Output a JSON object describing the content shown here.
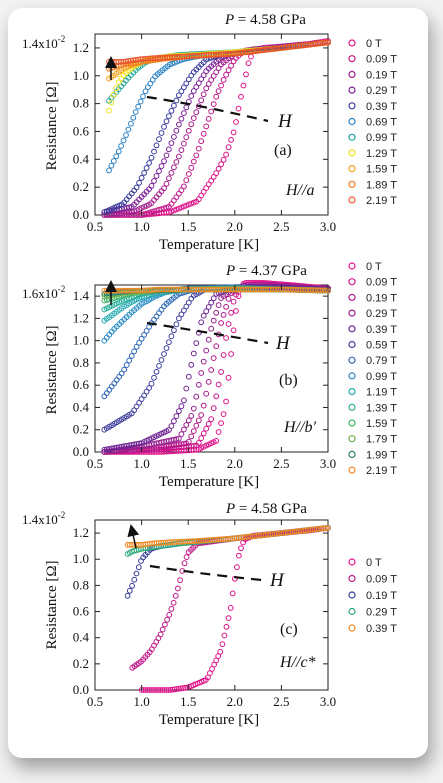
{
  "figure": {
    "x_label": "Temperature [K]",
    "y_label": "Resistance [Ω]",
    "H_symbol": "H"
  },
  "chart_data": [
    {
      "type": "scatter",
      "panel": "(a)",
      "title": "P = 4.58 GPa",
      "title_P": "P",
      "title_value": " = 4.58 GPa",
      "field_direction": "H//a",
      "xlim": [
        0.5,
        3.0
      ],
      "ylim": [
        0.0,
        1.3
      ],
      "x_ticks": [
        "0.5",
        "1.0",
        "1.5",
        "2.0",
        "2.5",
        "3.0"
      ],
      "y_ticks": [
        "0.0",
        "0.2",
        "0.4",
        "0.6",
        "0.8",
        "1.0",
        "1.2"
      ],
      "y_top_label": "1.4x10",
      "y_top_exp": "-2",
      "series": [
        {
          "name": "0 T",
          "color": "#e0138c",
          "x": [
            0.6,
            1.0,
            1.3,
            1.6,
            1.7,
            1.8,
            1.9,
            2.0,
            2.05,
            2.1,
            2.15,
            2.2,
            2.3,
            2.5,
            2.8,
            3.0
          ],
          "y": [
            0.0,
            0.0,
            0.02,
            0.1,
            0.2,
            0.3,
            0.42,
            0.62,
            0.8,
            0.95,
            1.1,
            1.18,
            1.2,
            1.21,
            1.23,
            1.25
          ]
        },
        {
          "name": "0.09 T",
          "color": "#c2188a",
          "x": [
            0.6,
            1.0,
            1.3,
            1.45,
            1.6,
            1.7,
            1.8,
            1.9,
            2.0,
            2.1,
            2.2,
            2.5,
            3.0
          ],
          "y": [
            0.0,
            0.0,
            0.06,
            0.2,
            0.45,
            0.65,
            0.85,
            1.0,
            1.12,
            1.18,
            1.19,
            1.21,
            1.24
          ]
        },
        {
          "name": "0.19 T",
          "color": "#a41e8e",
          "x": [
            0.6,
            0.9,
            1.1,
            1.25,
            1.4,
            1.55,
            1.7,
            1.85,
            2.0,
            2.2,
            2.5,
            3.0
          ],
          "y": [
            0.0,
            0.02,
            0.08,
            0.2,
            0.42,
            0.68,
            0.92,
            1.08,
            1.16,
            1.19,
            1.21,
            1.24
          ]
        },
        {
          "name": "0.29 T",
          "color": "#7b2296",
          "x": [
            0.6,
            0.9,
            1.1,
            1.25,
            1.4,
            1.55,
            1.7,
            1.85,
            2.0,
            2.5,
            3.0
          ],
          "y": [
            0.02,
            0.06,
            0.2,
            0.4,
            0.65,
            0.88,
            1.04,
            1.13,
            1.17,
            1.2,
            1.24
          ]
        },
        {
          "name": "0.39 T",
          "color": "#3a3d9b",
          "x": [
            0.6,
            0.8,
            0.95,
            1.1,
            1.25,
            1.4,
            1.55,
            1.7,
            1.9,
            2.2,
            2.6,
            3.0
          ],
          "y": [
            0.02,
            0.08,
            0.2,
            0.4,
            0.65,
            0.86,
            1.02,
            1.12,
            1.16,
            1.18,
            1.21,
            1.24
          ]
        },
        {
          "name": "0.69 T",
          "color": "#2a82c4",
          "x": [
            0.65,
            0.75,
            0.85,
            0.95,
            1.05,
            1.15,
            1.3,
            1.45,
            1.6,
            2.0,
            2.5,
            3.0
          ],
          "y": [
            0.32,
            0.45,
            0.6,
            0.76,
            0.9,
            1.0,
            1.08,
            1.12,
            1.14,
            1.17,
            1.2,
            1.24
          ]
        },
        {
          "name": "0.99 T",
          "color": "#22a79b",
          "x": [
            0.65,
            0.75,
            0.85,
            0.95,
            1.05,
            1.2,
            1.4,
            1.7,
            2.0,
            2.5,
            3.0
          ],
          "y": [
            0.82,
            0.9,
            0.98,
            1.05,
            1.1,
            1.13,
            1.15,
            1.16,
            1.17,
            1.2,
            1.24
          ]
        },
        {
          "name": "1.29 T",
          "color": "#f3e31a",
          "x": [
            0.65,
            0.7,
            0.75,
            0.8,
            0.9,
            1.0,
            1.1,
            1.3,
            1.6,
            2.0,
            2.5,
            3.0
          ],
          "y": [
            0.75,
            0.86,
            0.95,
            1.0,
            1.06,
            1.1,
            1.12,
            1.14,
            1.15,
            1.17,
            1.2,
            1.24
          ]
        },
        {
          "name": "1.59 T",
          "color": "#f4a21e",
          "x": [
            0.65,
            0.7,
            0.8,
            0.9,
            1.0,
            1.2,
            1.5,
            2.0,
            2.5,
            3.0
          ],
          "y": [
            0.98,
            1.0,
            1.05,
            1.08,
            1.1,
            1.12,
            1.14,
            1.16,
            1.2,
            1.24
          ]
        },
        {
          "name": "1.89 T",
          "color": "#f07b22",
          "x": [
            0.65,
            0.7,
            0.8,
            0.9,
            1.0,
            1.2,
            1.5,
            2.0,
            2.5,
            3.0
          ],
          "y": [
            1.05,
            1.06,
            1.08,
            1.09,
            1.1,
            1.12,
            1.14,
            1.16,
            1.2,
            1.24
          ]
        },
        {
          "name": "2.19 T",
          "color": "#e8532a",
          "x": [
            0.65,
            0.7,
            0.8,
            0.9,
            1.0,
            1.2,
            1.5,
            2.0,
            2.5,
            3.0
          ],
          "y": [
            1.1,
            1.1,
            1.1,
            1.11,
            1.12,
            1.13,
            1.14,
            1.16,
            1.2,
            1.24
          ]
        }
      ]
    },
    {
      "type": "scatter",
      "panel": "(b)",
      "title": "P = 4.37 GPa",
      "title_P": "P",
      "title_value": " = 4.37 GPa",
      "field_direction": "H//b′",
      "xlim": [
        0.5,
        3.0
      ],
      "ylim": [
        0.0,
        1.5
      ],
      "x_ticks": [
        "0.5",
        "1.0",
        "1.5",
        "2.0",
        "2.5",
        "3.0"
      ],
      "y_ticks": [
        "0.0",
        "0.2",
        "0.4",
        "0.6",
        "0.8",
        "1.0",
        "1.2",
        "1.4"
      ],
      "y_top_label": "1.6x10",
      "y_top_exp": "-2",
      "series": [
        {
          "name": "0 T",
          "color": "#e0138c",
          "x": [
            0.6,
            1.2,
            1.6,
            1.8,
            1.9,
            1.95,
            2.0,
            2.05,
            2.1,
            2.3,
            2.6,
            3.0
          ],
          "y": [
            0.0,
            0.0,
            0.02,
            0.1,
            0.4,
            0.8,
            1.2,
            1.45,
            1.52,
            1.52,
            1.5,
            1.47
          ]
        },
        {
          "name": "0.09 T",
          "color": "#d0168b",
          "x": [
            0.6,
            1.2,
            1.6,
            1.75,
            1.85,
            1.92,
            2.0,
            2.1,
            2.3,
            2.6,
            3.0
          ],
          "y": [
            0.0,
            0.02,
            0.06,
            0.3,
            0.7,
            1.1,
            1.4,
            1.5,
            1.51,
            1.49,
            1.47
          ]
        },
        {
          "name": "0.19 T",
          "color": "#b41a8c",
          "x": [
            0.6,
            1.1,
            1.5,
            1.65,
            1.75,
            1.85,
            1.95,
            2.1,
            2.4,
            3.0
          ],
          "y": [
            0.0,
            0.03,
            0.08,
            0.35,
            0.75,
            1.15,
            1.42,
            1.5,
            1.5,
            1.47
          ]
        },
        {
          "name": "0.29 T",
          "color": "#98208e",
          "x": [
            0.6,
            1.0,
            1.4,
            1.55,
            1.65,
            1.75,
            1.85,
            2.0,
            2.4,
            3.0
          ],
          "y": [
            0.0,
            0.05,
            0.12,
            0.35,
            0.75,
            1.12,
            1.38,
            1.48,
            1.49,
            1.46
          ]
        },
        {
          "name": "0.39 T",
          "color": "#6d2593",
          "x": [
            0.6,
            1.0,
            1.3,
            1.45,
            1.55,
            1.65,
            1.8,
            2.0,
            2.5,
            3.0
          ],
          "y": [
            0.02,
            0.08,
            0.2,
            0.45,
            0.85,
            1.2,
            1.42,
            1.48,
            1.48,
            1.46
          ]
        },
        {
          "name": "0.59 T",
          "color": "#3e3f9c",
          "x": [
            0.6,
            0.9,
            1.1,
            1.25,
            1.4,
            1.55,
            1.7,
            1.9,
            2.3,
            3.0
          ],
          "y": [
            0.2,
            0.35,
            0.6,
            0.9,
            1.2,
            1.4,
            1.47,
            1.48,
            1.47,
            1.45
          ]
        },
        {
          "name": "0.79 T",
          "color": "#2e67b6",
          "x": [
            0.6,
            0.8,
            0.95,
            1.1,
            1.25,
            1.4,
            1.6,
            2.0,
            2.5,
            3.0
          ],
          "y": [
            0.5,
            0.72,
            0.95,
            1.15,
            1.32,
            1.42,
            1.47,
            1.48,
            1.46,
            1.45
          ]
        },
        {
          "name": "0.99 T",
          "color": "#2a8cc6",
          "x": [
            0.6,
            0.7,
            0.8,
            0.9,
            1.0,
            1.15,
            1.3,
            1.5,
            2.0,
            2.5,
            3.0
          ],
          "y": [
            1.0,
            1.1,
            1.18,
            1.26,
            1.33,
            1.4,
            1.45,
            1.47,
            1.47,
            1.46,
            1.45
          ]
        },
        {
          "name": "1.19 T",
          "color": "#27a9b2",
          "x": [
            0.6,
            0.7,
            0.8,
            0.9,
            1.0,
            1.2,
            1.5,
            2.0,
            2.5,
            3.0
          ],
          "y": [
            1.18,
            1.24,
            1.3,
            1.35,
            1.39,
            1.43,
            1.46,
            1.47,
            1.46,
            1.45
          ]
        },
        {
          "name": "1.39 T",
          "color": "#2bb09a",
          "x": [
            0.6,
            0.7,
            0.8,
            0.9,
            1.0,
            1.2,
            1.5,
            2.0,
            2.5,
            3.0
          ],
          "y": [
            1.28,
            1.32,
            1.36,
            1.39,
            1.42,
            1.45,
            1.46,
            1.47,
            1.46,
            1.45
          ]
        },
        {
          "name": "1.59 T",
          "color": "#41b36e",
          "x": [
            0.6,
            0.7,
            0.8,
            1.0,
            1.2,
            1.5,
            2.0,
            2.5,
            3.0
          ],
          "y": [
            1.36,
            1.38,
            1.41,
            1.44,
            1.45,
            1.46,
            1.47,
            1.46,
            1.45
          ]
        },
        {
          "name": "1.79 T",
          "color": "#6fb44a",
          "x": [
            0.6,
            0.7,
            0.8,
            1.0,
            1.2,
            1.5,
            2.0,
            2.5,
            3.0
          ],
          "y": [
            1.4,
            1.41,
            1.43,
            1.44,
            1.45,
            1.46,
            1.46,
            1.46,
            1.45
          ]
        },
        {
          "name": "1.99 T",
          "color": "#2c7f73",
          "x": [
            0.6,
            0.7,
            0.8,
            1.0,
            1.2,
            1.5,
            2.0,
            2.5,
            3.0
          ],
          "y": [
            1.42,
            1.43,
            1.44,
            1.45,
            1.45,
            1.46,
            1.46,
            1.46,
            1.45
          ]
        },
        {
          "name": "2.19 T",
          "color": "#f08a24",
          "x": [
            0.6,
            0.7,
            0.8,
            1.0,
            1.2,
            1.5,
            2.0,
            2.5,
            3.0
          ],
          "y": [
            1.45,
            1.45,
            1.45,
            1.45,
            1.46,
            1.46,
            1.46,
            1.46,
            1.45
          ]
        }
      ]
    },
    {
      "type": "scatter",
      "panel": "(c)",
      "title": "P = 4.58 GPa",
      "title_P": "P",
      "title_value": " = 4.58 GPa",
      "field_direction": "H//c*",
      "xlim": [
        0.5,
        3.0
      ],
      "ylim": [
        0.0,
        1.3
      ],
      "x_ticks": [
        "0.5",
        "1.0",
        "1.5",
        "2.0",
        "2.5",
        "3.0"
      ],
      "y_ticks": [
        "0.0",
        "0.2",
        "0.4",
        "0.6",
        "0.8",
        "1.0",
        "1.2"
      ],
      "y_top_label": "1.4x10",
      "y_top_exp": "-2",
      "series": [
        {
          "name": "0 T",
          "color": "#e0138c",
          "x": [
            1.0,
            1.3,
            1.5,
            1.7,
            1.85,
            1.95,
            2.0,
            2.05,
            2.1,
            2.2,
            2.5,
            2.8,
            3.0
          ],
          "y": [
            0.0,
            0.0,
            0.02,
            0.08,
            0.3,
            0.6,
            0.85,
            1.05,
            1.15,
            1.18,
            1.2,
            1.22,
            1.24
          ]
        },
        {
          "name": "0.09 T",
          "color": "#c2188a",
          "x": [
            0.9,
            1.0,
            1.1,
            1.2,
            1.3,
            1.35,
            1.4,
            1.45,
            1.5,
            1.6,
            2.0,
            2.5,
            3.0
          ],
          "y": [
            0.17,
            0.22,
            0.3,
            0.42,
            0.58,
            0.68,
            0.8,
            0.95,
            1.05,
            1.12,
            1.16,
            1.2,
            1.24
          ]
        },
        {
          "name": "0.19 T",
          "color": "#3a3d9b",
          "x": [
            0.85,
            0.9,
            0.95,
            1.0,
            1.1,
            1.2,
            1.4,
            1.7,
            2.0,
            2.5,
            3.0
          ],
          "y": [
            0.72,
            0.8,
            0.9,
            1.0,
            1.08,
            1.1,
            1.12,
            1.14,
            1.16,
            1.2,
            1.24
          ]
        },
        {
          "name": "0.29 T",
          "color": "#2aa87a",
          "x": [
            0.85,
            0.9,
            1.0,
            1.1,
            1.2,
            1.4,
            1.7,
            2.0,
            2.5,
            3.0
          ],
          "y": [
            1.04,
            1.06,
            1.08,
            1.09,
            1.1,
            1.12,
            1.14,
            1.16,
            1.2,
            1.24
          ]
        },
        {
          "name": "0.39 T",
          "color": "#f08a24",
          "x": [
            0.85,
            0.9,
            1.0,
            1.1,
            1.3,
            1.6,
            2.0,
            2.5,
            3.0
          ],
          "y": [
            1.11,
            1.11,
            1.11,
            1.12,
            1.13,
            1.14,
            1.16,
            1.2,
            1.24
          ]
        }
      ]
    }
  ]
}
